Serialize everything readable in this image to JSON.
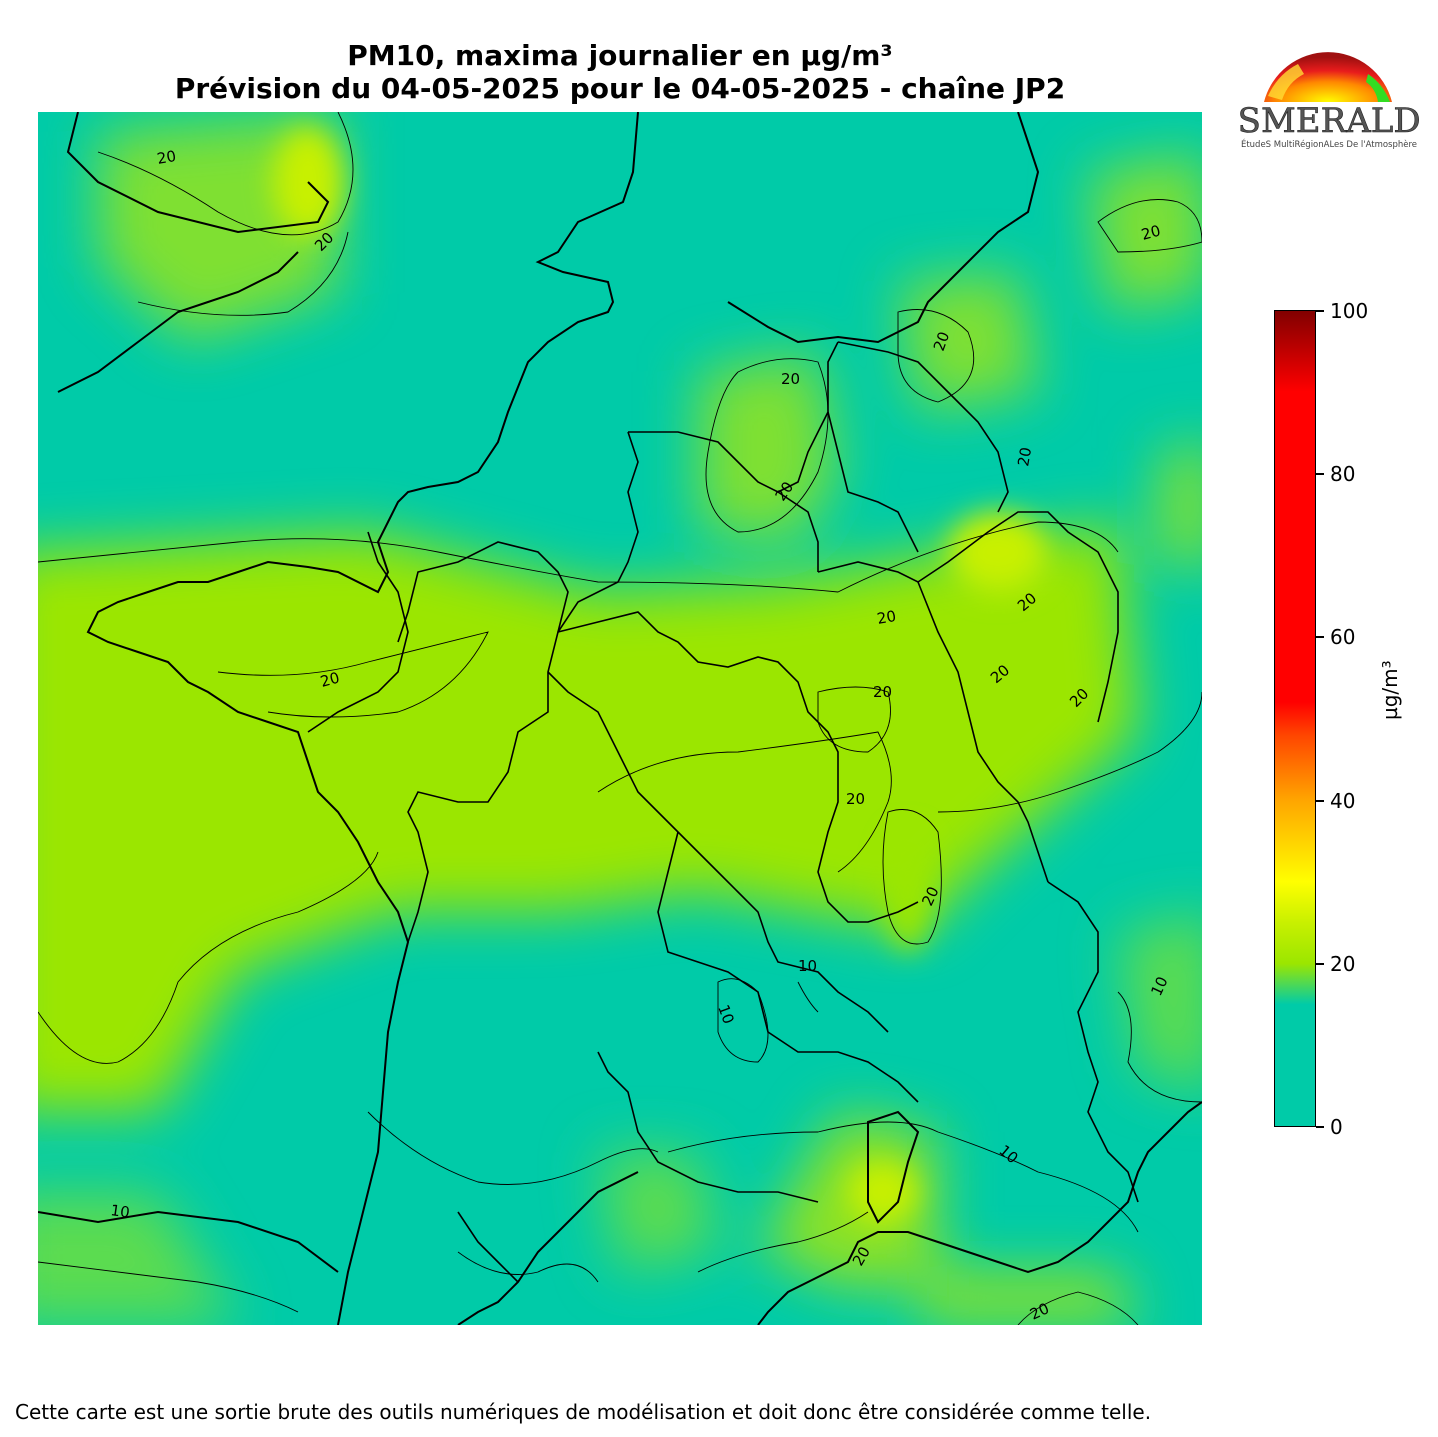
{
  "title": {
    "line1": "PM10, maxima journalier en µg/m³",
    "line2": "Prévision du 04-05-2025 pour le 04-05-2025 - chaîne JP2"
  },
  "logo": {
    "text": "ESMERALDA",
    "subtitle": "ÉtudeS MultiRégionALes De l'Atmosphère"
  },
  "map": {
    "background_color": "#00cba8",
    "contour_labels": [
      "20",
      "20",
      "20",
      "20",
      "20",
      "20",
      "20",
      "20",
      "20",
      "20",
      "20",
      "20",
      "20",
      "20",
      "20",
      "10",
      "10",
      "10",
      "10",
      "10",
      "20",
      "20"
    ]
  },
  "colorbar": {
    "unit": "µg/m³",
    "ticks": [
      "0",
      "20",
      "40",
      "60",
      "80",
      "100"
    ],
    "range": [
      0,
      100
    ],
    "stops": [
      {
        "value": 0,
        "color": "#00cba8"
      },
      {
        "value": 15,
        "color": "#00cba8"
      },
      {
        "value": 20,
        "color": "#9be600"
      },
      {
        "value": 25,
        "color": "#c8f000"
      },
      {
        "value": 30,
        "color": "#ffff00"
      },
      {
        "value": 40,
        "color": "#ffa500"
      },
      {
        "value": 48,
        "color": "#ff4500"
      },
      {
        "value": 52,
        "color": "#ff0000"
      },
      {
        "value": 90,
        "color": "#ff0000"
      },
      {
        "value": 100,
        "color": "#800000"
      }
    ]
  },
  "footer": "Cette carte est une sortie brute des outils numériques de modélisation et doit donc être considérée comme telle."
}
